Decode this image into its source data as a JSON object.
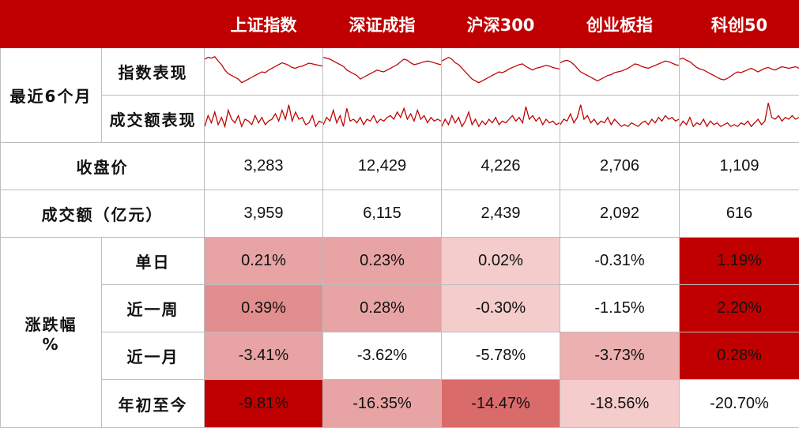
{
  "header": {
    "corner": "",
    "indices": [
      "上证指数",
      "深证成指",
      "沪深300",
      "创业板指",
      "科创50"
    ]
  },
  "section_recent": {
    "label": "最近6个月",
    "row_index": "指数表现",
    "row_volume": "成交额表现"
  },
  "close": {
    "label": "收盘价",
    "values": [
      "3,283",
      "12,429",
      "4,226",
      "2,706",
      "1,109"
    ]
  },
  "turnover": {
    "label": "成交额（亿元）",
    "values": [
      "3,959",
      "6,115",
      "2,439",
      "2,092",
      "616"
    ]
  },
  "change": {
    "label_line1": "涨跌幅",
    "label_line2": "%",
    "periods": [
      {
        "label": "单日",
        "values": [
          "0.21%",
          "0.23%",
          "0.02%",
          "-0.31%",
          "1.19%"
        ],
        "colors": [
          "#e8a4a4",
          "#e8a4a4",
          "#f4cccc",
          "#ffffff",
          "#c00000"
        ]
      },
      {
        "label": "近一周",
        "values": [
          "0.39%",
          "0.28%",
          "-0.30%",
          "-1.15%",
          "2.20%"
        ],
        "colors": [
          "#e38e8e",
          "#e8a4a4",
          "#f4cccc",
          "#ffffff",
          "#c00000"
        ]
      },
      {
        "label": "近一月",
        "values": [
          "-3.41%",
          "-3.62%",
          "-5.78%",
          "-3.73%",
          "0.28%"
        ],
        "colors": [
          "#e8a4a4",
          "#ffffff",
          "#ffffff",
          "#ecb0b0",
          "#c00000"
        ]
      },
      {
        "label": "年初至今",
        "values": [
          "-9.81%",
          "-16.35%",
          "-14.47%",
          "-18.56%",
          "-20.70%"
        ],
        "colors": [
          "#c00000",
          "#e8a4a4",
          "#d96b6b",
          "#f4cccc",
          "#ffffff"
        ]
      }
    ]
  },
  "sparkline_color": "#c00000",
  "sparklines": {
    "index": [
      [
        0.85,
        0.9,
        0.88,
        0.92,
        0.8,
        0.7,
        0.55,
        0.45,
        0.4,
        0.35,
        0.3,
        0.2,
        0.25,
        0.3,
        0.35,
        0.4,
        0.45,
        0.5,
        0.48,
        0.55,
        0.6,
        0.65,
        0.7,
        0.75,
        0.72,
        0.68,
        0.62,
        0.6,
        0.64,
        0.66,
        0.7,
        0.74,
        0.72,
        0.7,
        0.68,
        0.66
      ],
      [
        0.9,
        0.88,
        0.85,
        0.8,
        0.75,
        0.7,
        0.65,
        0.55,
        0.5,
        0.45,
        0.4,
        0.3,
        0.35,
        0.4,
        0.45,
        0.5,
        0.55,
        0.52,
        0.5,
        0.55,
        0.6,
        0.65,
        0.7,
        0.78,
        0.85,
        0.82,
        0.75,
        0.7,
        0.72,
        0.75,
        0.78,
        0.8,
        0.78,
        0.75,
        0.72,
        0.7
      ],
      [
        0.8,
        0.85,
        0.9,
        0.85,
        0.75,
        0.7,
        0.6,
        0.5,
        0.4,
        0.3,
        0.25,
        0.2,
        0.25,
        0.3,
        0.35,
        0.4,
        0.45,
        0.5,
        0.48,
        0.52,
        0.58,
        0.62,
        0.66,
        0.7,
        0.72,
        0.65,
        0.6,
        0.55,
        0.6,
        0.62,
        0.65,
        0.68,
        0.66,
        0.62,
        0.6,
        0.58
      ],
      [
        0.75,
        0.8,
        0.82,
        0.78,
        0.7,
        0.6,
        0.5,
        0.45,
        0.4,
        0.35,
        0.3,
        0.25,
        0.3,
        0.35,
        0.4,
        0.42,
        0.48,
        0.5,
        0.52,
        0.56,
        0.6,
        0.66,
        0.72,
        0.7,
        0.65,
        0.62,
        0.6,
        0.64,
        0.68,
        0.72,
        0.76,
        0.8,
        0.78,
        0.74,
        0.7,
        0.68
      ],
      [
        0.85,
        0.88,
        0.82,
        0.78,
        0.7,
        0.62,
        0.58,
        0.55,
        0.5,
        0.45,
        0.4,
        0.35,
        0.3,
        0.28,
        0.32,
        0.38,
        0.45,
        0.5,
        0.48,
        0.52,
        0.56,
        0.6,
        0.55,
        0.5,
        0.55,
        0.6,
        0.62,
        0.58,
        0.55,
        0.6,
        0.64,
        0.62,
        0.6,
        0.62,
        0.64,
        0.6
      ]
    ],
    "volume": [
      [
        0.3,
        0.6,
        0.4,
        0.7,
        0.35,
        0.55,
        0.3,
        0.75,
        0.5,
        0.4,
        0.6,
        0.3,
        0.5,
        0.45,
        0.35,
        0.6,
        0.4,
        0.55,
        0.35,
        0.45,
        0.5,
        0.65,
        0.45,
        0.75,
        0.5,
        0.9,
        0.45,
        0.7,
        0.5,
        0.55,
        0.35,
        0.4,
        0.6,
        0.3,
        0.45,
        0.4
      ],
      [
        0.35,
        0.55,
        0.45,
        0.75,
        0.4,
        0.6,
        0.3,
        0.8,
        0.45,
        0.5,
        0.4,
        0.55,
        0.35,
        0.5,
        0.45,
        0.6,
        0.4,
        0.5,
        0.45,
        0.55,
        0.6,
        0.5,
        0.7,
        0.55,
        0.8,
        0.5,
        0.65,
        0.45,
        0.75,
        0.5,
        0.6,
        0.4,
        0.55,
        0.45,
        0.5,
        0.45
      ],
      [
        0.3,
        0.5,
        0.35,
        0.6,
        0.4,
        0.55,
        0.3,
        0.45,
        0.7,
        0.35,
        0.5,
        0.3,
        0.45,
        0.35,
        0.5,
        0.4,
        0.55,
        0.35,
        0.45,
        0.4,
        0.5,
        0.6,
        0.45,
        0.55,
        0.4,
        0.85,
        0.5,
        0.6,
        0.45,
        0.55,
        0.35,
        0.5,
        0.4,
        0.45,
        0.35,
        0.4
      ],
      [
        0.35,
        0.5,
        0.45,
        0.65,
        0.4,
        0.55,
        0.9,
        0.5,
        0.6,
        0.4,
        0.5,
        0.35,
        0.45,
        0.4,
        0.55,
        0.35,
        0.5,
        0.4,
        0.3,
        0.35,
        0.3,
        0.4,
        0.35,
        0.3,
        0.4,
        0.45,
        0.35,
        0.5,
        0.4,
        0.55,
        0.45,
        0.6,
        0.5,
        0.55,
        0.45,
        0.5
      ],
      [
        0.3,
        0.45,
        0.35,
        0.55,
        0.3,
        0.4,
        0.35,
        0.5,
        0.3,
        0.45,
        0.35,
        0.4,
        0.3,
        0.35,
        0.4,
        0.3,
        0.35,
        0.3,
        0.4,
        0.35,
        0.45,
        0.3,
        0.4,
        0.5,
        0.35,
        0.45,
        0.95,
        0.55,
        0.5,
        0.6,
        0.45,
        0.55,
        0.5,
        0.6,
        0.5,
        0.55
      ]
    ]
  }
}
